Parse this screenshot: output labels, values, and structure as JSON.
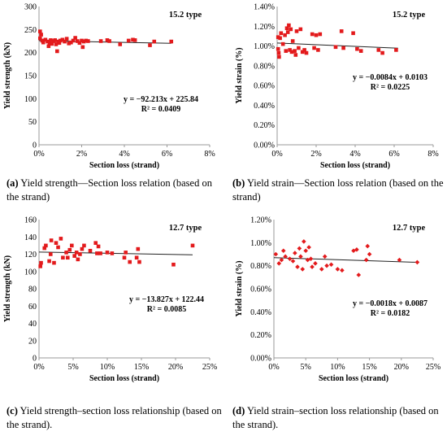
{
  "chart_data": [
    {
      "id": "a",
      "type": "scatter",
      "series_color": "#e31a1c",
      "type_label": "15.2 type",
      "xlabel": "Section loss (strand)",
      "ylabel": "Yield strength (kN)",
      "xlim": [
        0,
        0.08
      ],
      "ylim": [
        0,
        300
      ],
      "xticks": [
        "0%",
        "2%",
        "4%",
        "6%",
        "8%"
      ],
      "yticks": [
        "0",
        "50",
        "100",
        "150",
        "200",
        "250",
        "300"
      ],
      "equation": "y = −92.213x + 225.84",
      "r2": "R² = 0.0409",
      "trend": {
        "slope": -92.213,
        "intercept": 225.84,
        "x_range": [
          0,
          0.062
        ]
      },
      "points": [
        [
          0.0005,
          246
        ],
        [
          0.0005,
          231
        ],
        [
          0.001,
          239
        ],
        [
          0.0015,
          226
        ],
        [
          0.002,
          222
        ],
        [
          0.003,
          228
        ],
        [
          0.004,
          224
        ],
        [
          0.0045,
          214
        ],
        [
          0.005,
          222
        ],
        [
          0.0055,
          227
        ],
        [
          0.006,
          219
        ],
        [
          0.007,
          225
        ],
        [
          0.0075,
          227
        ],
        [
          0.008,
          218
        ],
        [
          0.0085,
          203
        ],
        [
          0.009,
          224
        ],
        [
          0.0095,
          221
        ],
        [
          0.01,
          226
        ],
        [
          0.011,
          228
        ],
        [
          0.012,
          224
        ],
        [
          0.013,
          230
        ],
        [
          0.014,
          220
        ],
        [
          0.015,
          222
        ],
        [
          0.016,
          226
        ],
        [
          0.017,
          232
        ],
        [
          0.018,
          225
        ],
        [
          0.019,
          221
        ],
        [
          0.02,
          226
        ],
        [
          0.0205,
          212
        ],
        [
          0.021,
          224
        ],
        [
          0.022,
          226
        ],
        [
          0.023,
          225
        ],
        [
          0.029,
          225
        ],
        [
          0.032,
          227
        ],
        [
          0.033,
          225
        ],
        [
          0.038,
          218
        ],
        [
          0.042,
          226
        ],
        [
          0.044,
          228
        ],
        [
          0.045,
          227
        ],
        [
          0.052,
          216
        ],
        [
          0.054,
          224
        ],
        [
          0.062,
          224
        ]
      ]
    },
    {
      "id": "b",
      "type": "scatter",
      "series_color": "#e31a1c",
      "type_label": "15.2 type",
      "xlabel": "Section loss (strand)",
      "ylabel": "Yield strain (%)",
      "xlim": [
        0,
        0.08
      ],
      "ylim": [
        0,
        0.014
      ],
      "xticks": [
        "0%",
        "2%",
        "4%",
        "6%",
        "8%"
      ],
      "yticks": [
        "0.00%",
        "0.20%",
        "0.40%",
        "0.60%",
        "0.80%",
        "1.00%",
        "1.20%",
        "1.40%"
      ],
      "equation": "y = −0.0084x + 0.0103",
      "r2": "R² = 0.0225",
      "trend": {
        "slope": -0.0084,
        "intercept": 0.0103,
        "x_range": [
          0,
          0.062
        ]
      },
      "points": [
        [
          0.0005,
          0.0109
        ],
        [
          0.0005,
          0.0097
        ],
        [
          0.0008,
          0.0093
        ],
        [
          0.001,
          0.0089
        ],
        [
          0.0015,
          0.0108
        ],
        [
          0.002,
          0.0113
        ],
        [
          0.003,
          0.0102
        ],
        [
          0.004,
          0.0111
        ],
        [
          0.0045,
          0.0095
        ],
        [
          0.005,
          0.0118
        ],
        [
          0.0055,
          0.0114
        ],
        [
          0.006,
          0.0121
        ],
        [
          0.0065,
          0.0096
        ],
        [
          0.007,
          0.0117
        ],
        [
          0.0075,
          0.0094
        ],
        [
          0.008,
          0.0105
        ],
        [
          0.009,
          0.0095
        ],
        [
          0.0095,
          0.0091
        ],
        [
          0.01,
          0.0115
        ],
        [
          0.011,
          0.0098
        ],
        [
          0.012,
          0.0117
        ],
        [
          0.013,
          0.0094
        ],
        [
          0.014,
          0.0096
        ],
        [
          0.015,
          0.0093
        ],
        [
          0.018,
          0.0112
        ],
        [
          0.019,
          0.0098
        ],
        [
          0.02,
          0.0111
        ],
        [
          0.021,
          0.0096
        ],
        [
          0.022,
          0.0112
        ],
        [
          0.03,
          0.0099
        ],
        [
          0.033,
          0.0115
        ],
        [
          0.034,
          0.0098
        ],
        [
          0.039,
          0.0113
        ],
        [
          0.041,
          0.0097
        ],
        [
          0.043,
          0.0095
        ],
        [
          0.052,
          0.0096
        ],
        [
          0.054,
          0.0093
        ],
        [
          0.061,
          0.0096
        ]
      ]
    },
    {
      "id": "c",
      "type": "scatter",
      "series_color": "#e31a1c",
      "type_label": "12.7 type",
      "xlabel": "Section loss (strand)",
      "ylabel": "Yield strength (kN)",
      "xlim": [
        0,
        0.25
      ],
      "ylim": [
        0,
        160
      ],
      "xticks": [
        "0%",
        "5%",
        "10%",
        "15%",
        "20%",
        "25%"
      ],
      "yticks": [
        "0",
        "20",
        "40",
        "60",
        "80",
        "100",
        "120",
        "140",
        "160"
      ],
      "equation": "y = −13.827x + 122.44",
      "r2": "R² = 0.0085",
      "trend": {
        "slope": -13.827,
        "intercept": 122.44,
        "x_range": [
          0,
          0.225
        ]
      },
      "points": [
        [
          0.002,
          106
        ],
        [
          0.003,
          110
        ],
        [
          0.008,
          127
        ],
        [
          0.01,
          130
        ],
        [
          0.015,
          112
        ],
        [
          0.017,
          120
        ],
        [
          0.018,
          136
        ],
        [
          0.022,
          110
        ],
        [
          0.025,
          133
        ],
        [
          0.028,
          128
        ],
        [
          0.032,
          138
        ],
        [
          0.035,
          116
        ],
        [
          0.04,
          122
        ],
        [
          0.042,
          116
        ],
        [
          0.045,
          125
        ],
        [
          0.048,
          130
        ],
        [
          0.052,
          118
        ],
        [
          0.055,
          122
        ],
        [
          0.057,
          114
        ],
        [
          0.06,
          120
        ],
        [
          0.063,
          126
        ],
        [
          0.066,
          130
        ],
        [
          0.075,
          124
        ],
        [
          0.083,
          133
        ],
        [
          0.085,
          121
        ],
        [
          0.087,
          129
        ],
        [
          0.09,
          121
        ],
        [
          0.1,
          122
        ],
        [
          0.107,
          121
        ],
        [
          0.125,
          116
        ],
        [
          0.127,
          122
        ],
        [
          0.133,
          111
        ],
        [
          0.143,
          116
        ],
        [
          0.145,
          126
        ],
        [
          0.147,
          111
        ],
        [
          0.197,
          108
        ],
        [
          0.225,
          130
        ]
      ]
    },
    {
      "id": "d",
      "type": "scatter",
      "series_color": "#e31a1c",
      "type_label": "12.7 type",
      "xlabel": "Section loss (strand)",
      "ylabel": "Yield strain (%)",
      "xlim": [
        0,
        0.25
      ],
      "ylim": [
        0,
        0.012
      ],
      "xticks": [
        "0%",
        "5%",
        "10%",
        "15%",
        "20%",
        "25%"
      ],
      "yticks": [
        "0.00%",
        "0.20%",
        "0.40%",
        "0.60%",
        "0.80%",
        "1.00%",
        "1.20%"
      ],
      "equation": "y = −0.0018x + 0.0087",
      "r2": "R² = 0.0182",
      "trend": {
        "slope": -0.0018,
        "intercept": 0.0087,
        "x_range": [
          0,
          0.225
        ]
      },
      "points": [
        [
          0.003,
          0.009
        ],
        [
          0.008,
          0.0082
        ],
        [
          0.012,
          0.0085
        ],
        [
          0.015,
          0.0093
        ],
        [
          0.018,
          0.0088
        ],
        [
          0.025,
          0.0086
        ],
        [
          0.03,
          0.0084
        ],
        [
          0.033,
          0.0091
        ],
        [
          0.037,
          0.0079
        ],
        [
          0.04,
          0.0095
        ],
        [
          0.042,
          0.0088
        ],
        [
          0.045,
          0.0077
        ],
        [
          0.047,
          0.0101
        ],
        [
          0.05,
          0.0093
        ],
        [
          0.053,
          0.0085
        ],
        [
          0.055,
          0.0096
        ],
        [
          0.058,
          0.0086
        ],
        [
          0.06,
          0.0079
        ],
        [
          0.065,
          0.0082
        ],
        [
          0.075,
          0.0077
        ],
        [
          0.08,
          0.0088
        ],
        [
          0.083,
          0.008
        ],
        [
          0.09,
          0.0081
        ],
        [
          0.1,
          0.0077
        ],
        [
          0.107,
          0.0076
        ],
        [
          0.125,
          0.0093
        ],
        [
          0.13,
          0.0094
        ],
        [
          0.133,
          0.0072
        ],
        [
          0.145,
          0.0085
        ],
        [
          0.147,
          0.0097
        ],
        [
          0.15,
          0.009
        ],
        [
          0.197,
          0.0085
        ],
        [
          0.225,
          0.0083
        ]
      ]
    }
  ],
  "captions": [
    {
      "letter": "(a)",
      "text": " Yield strength—Section loss relation (based on the strand)"
    },
    {
      "letter": "(b)",
      "text": " Yield strain—Section loss relation (based on the strand)"
    },
    {
      "letter": "(c)",
      "text": " Yield strength–section loss relationship (based on the strand)."
    },
    {
      "letter": "(d)",
      "text": " Yield strain–section loss relationship (based on the strand)."
    }
  ]
}
